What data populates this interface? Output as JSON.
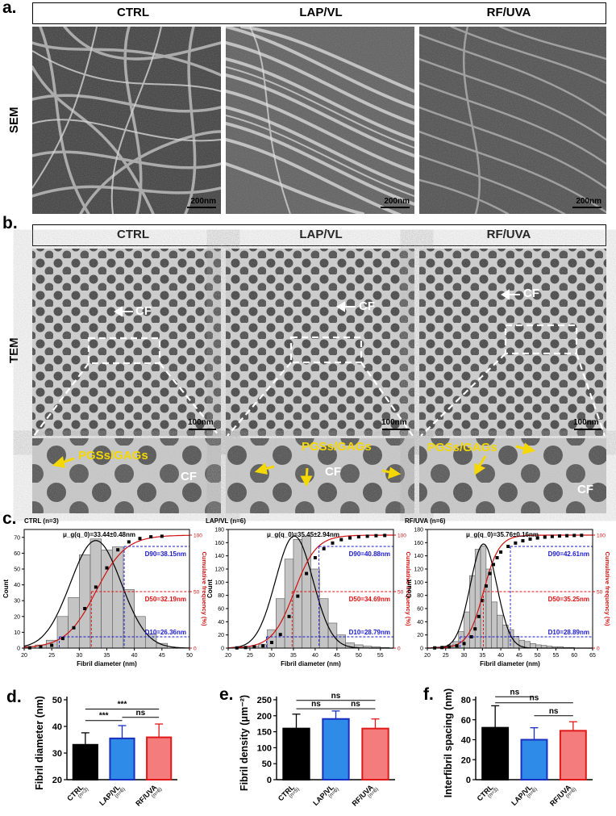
{
  "panel_labels": {
    "a": "a.",
    "b": "b.",
    "c": "c.",
    "d": "d.",
    "e": "e.",
    "f": "f."
  },
  "groups": [
    "CTRL",
    "LAP/VL",
    "RF/UVA"
  ],
  "row_labels": {
    "sem": "SEM",
    "tem": "TEM"
  },
  "scalebars": {
    "sem": "200nm",
    "tem": "100nm"
  },
  "tem_annotations": {
    "cf": "CF",
    "pgs": "PGSs/GAGs"
  },
  "colors": {
    "ctrl": "#000000",
    "lapvl": "#2e8be8",
    "rfuva": "#f47c7c",
    "lapvl_border": "#1a2fbf",
    "rfuva_border": "#e01818",
    "fit": "#000000",
    "cumulative": "#d01010",
    "d90": "#1a1acf",
    "d50": "#e01010",
    "d10": "#1a1acf",
    "annotation_yellow": "#f5d800"
  },
  "histograms": [
    {
      "title": "CTRL  (n=3)",
      "mu": "μ_g(q_0)=33.44±0.48nm",
      "d90": "D90=38.15nm",
      "d50": "D50=32.19nm",
      "d10": "D10=26.36nm",
      "xlabel": "Fibril diameter (nm)",
      "ylabel_left": "Count",
      "ylabel_right": "Cumulative frequency (%)",
      "chart_data": {
        "type": "bar",
        "x_start": 20,
        "bin_width": 2,
        "counts": [
          1,
          2,
          5,
          20,
          32,
          59,
          69,
          62,
          64,
          37,
          20,
          9,
          3
        ],
        "xlim": [
          20,
          50
        ],
        "ylim": [
          0,
          75
        ],
        "xticks": [
          "20",
          "25",
          "30",
          "35",
          "40",
          "45",
          "50"
        ],
        "yticks": [
          "0",
          "10",
          "20",
          "30",
          "40",
          "50",
          "60",
          "70"
        ],
        "y2ticks": [
          "0",
          "50",
          "100"
        ],
        "fit_mean": 33.0,
        "fit_sd": 4.6,
        "fit_peak": 68,
        "cum_points_x": [
          21,
          23,
          25,
          27,
          29,
          31,
          33,
          35,
          37,
          39,
          41,
          43,
          45
        ],
        "cum_points_y": [
          0.3,
          1,
          2.5,
          8.5,
          18,
          35,
          54,
          71,
          87,
          94,
          97,
          98.5,
          99
        ],
        "d90_x": 38.15,
        "d50_x": 32.19,
        "d10_x": 26.36
      }
    },
    {
      "title": "LAP/VL  (n=6)",
      "mu": "μ_g(q_0)=35.45±2.94nm",
      "d90": "D90=40.88nm",
      "d50": "D50=34.69nm",
      "d10": "D10=28.79nm",
      "xlabel": "Fibril diameter (nm)",
      "ylabel_left": "Count",
      "ylabel_right": "Cumulative frequency (%)",
      "chart_data": {
        "type": "bar",
        "x_start": 21,
        "bin_width": 2,
        "counts": [
          1,
          2,
          3,
          6,
          28,
          75,
          135,
          165,
          170,
          120,
          75,
          38,
          20,
          8,
          5,
          3,
          2,
          1
        ],
        "xlim": [
          20,
          58
        ],
        "ylim": [
          0,
          180
        ],
        "xticks": [
          "20",
          "25",
          "30",
          "35",
          "40",
          "45",
          "50",
          "55"
        ],
        "yticks": [
          "0",
          "20",
          "40",
          "60",
          "80",
          "100",
          "120",
          "140",
          "160",
          "180"
        ],
        "y2ticks": [
          "0",
          "50",
          "100"
        ],
        "fit_mean": 35.2,
        "fit_sd": 4.3,
        "fit_peak": 170,
        "cum_points_x": [
          22,
          24,
          26,
          28,
          30,
          32,
          34,
          36,
          38,
          40,
          42,
          44,
          46,
          48,
          50,
          52,
          54,
          56
        ],
        "cum_points_y": [
          0.2,
          0.5,
          1,
          2,
          5,
          12,
          28,
          46,
          66,
          80,
          88,
          93,
          96,
          97.5,
          98.5,
          99,
          99.5,
          99.7
        ],
        "d90_x": 40.88,
        "d50_x": 34.69,
        "d10_x": 28.79
      }
    },
    {
      "title": "RF/UVA  (n=6)",
      "mu": "μ_g(q_0)=35.76±0.16nm",
      "d90": "D90=42.61nm",
      "d50": "D50=35.25nm",
      "d10": "D10=28.89nm",
      "xlabel": "Fibril diameter (nm)",
      "ylabel_left": "Count",
      "ylabel_right": "Cumulative frequency (%)",
      "chart_data": {
        "type": "bar",
        "x_start": 21,
        "bin_width": 1.5,
        "counts": [
          1,
          2,
          3,
          5,
          10,
          25,
          55,
          110,
          150,
          155,
          120,
          70,
          50,
          35,
          28,
          18,
          12,
          10,
          7,
          5,
          4,
          3,
          2,
          2,
          1,
          1
        ],
        "xlim": [
          20,
          65
        ],
        "ylim": [
          0,
          180
        ],
        "xticks": [
          "20",
          "25",
          "30",
          "35",
          "40",
          "45",
          "50",
          "55",
          "60",
          "65"
        ],
        "yticks": [
          "0",
          "20",
          "40",
          "60",
          "80",
          "100",
          "120",
          "140",
          "160",
          "180"
        ],
        "y2ticks": [
          "0",
          "50",
          "100"
        ],
        "fit_mean": 35.3,
        "fit_sd": 3.6,
        "fit_peak": 158,
        "cum_points_x": [
          22,
          24,
          26,
          28,
          30,
          32,
          33,
          34,
          35,
          36,
          37,
          38,
          39,
          40,
          42,
          44,
          46,
          48,
          50,
          52,
          54,
          56,
          58,
          60,
          62
        ],
        "cum_points_y": [
          0.2,
          0.5,
          1,
          2,
          4,
          10,
          17,
          28,
          42,
          55,
          66,
          74,
          80,
          85,
          90,
          93,
          95,
          96.5,
          97.5,
          98.2,
          98.8,
          99.2,
          99.5,
          99.7,
          99.8
        ],
        "d90_x": 42.61,
        "d50_x": 35.25,
        "d10_x": 28.89
      }
    }
  ],
  "bar_charts": [
    {
      "ylabel": "Fibril diameter (nm)",
      "chart_data": {
        "type": "bar",
        "categories": [
          "CTRL",
          "LAP/VL",
          "RF/UVA"
        ],
        "n_labels": [
          "(n=3)",
          "(n=6)",
          "(n=6)"
        ],
        "values": [
          33.1,
          35.5,
          35.9
        ],
        "errors": [
          4.5,
          4.8,
          5.0
        ],
        "ylim": [
          20,
          50
        ],
        "yticks": [
          "20",
          "30",
          "40",
          "50"
        ],
        "brackets": [
          {
            "from": 0,
            "to": 2,
            "label": "***",
            "y": 46.5
          },
          {
            "from": 0,
            "to": 1,
            "label": "***",
            "y": 42.2
          },
          {
            "from": 1,
            "to": 2,
            "label": "ns",
            "y": 43.4
          }
        ]
      }
    },
    {
      "ylabel": "Fibril density (μm⁻²)",
      "chart_data": {
        "type": "bar",
        "categories": [
          "CTRL",
          "LAP/VL",
          "RF/UVA"
        ],
        "n_labels": [
          "(n=5)",
          "(n=6)",
          "(n=6)"
        ],
        "values": [
          160,
          190,
          160
        ],
        "errors": [
          45,
          25,
          30
        ],
        "ylim": [
          0,
          250
        ],
        "yticks": [
          "0",
          "50",
          "100",
          "150",
          "200",
          "250"
        ],
        "brackets": [
          {
            "from": 0,
            "to": 2,
            "label": "ns",
            "y": 248
          },
          {
            "from": 0,
            "to": 1,
            "label": "ns",
            "y": 222
          },
          {
            "from": 1,
            "to": 2,
            "label": "ns",
            "y": 222
          }
        ]
      }
    },
    {
      "ylabel": "Interfibril spacing (nm)",
      "chart_data": {
        "type": "bar",
        "categories": [
          "CTRL",
          "LAP/VL",
          "RF/UVA"
        ],
        "n_labels": [
          "(n=3)",
          "(n=6)",
          "(n=6)"
        ],
        "values": [
          52,
          40,
          49
        ],
        "errors": [
          22,
          12,
          9
        ],
        "ylim": [
          0,
          80
        ],
        "yticks": [
          "0",
          "20",
          "40",
          "60",
          "80"
        ],
        "brackets": [
          {
            "from": 0,
            "to": 1,
            "label": "ns",
            "y": 83
          },
          {
            "from": 0,
            "to": 2,
            "label": "ns",
            "y": 77
          },
          {
            "from": 1,
            "to": 2,
            "label": "ns",
            "y": 64
          }
        ]
      }
    }
  ]
}
